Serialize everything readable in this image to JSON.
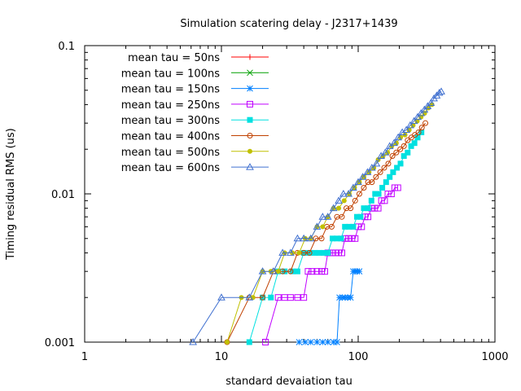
{
  "chart_data": {
    "type": "line",
    "title": "Simulation scatering delay - J2317+1439",
    "xlabel": "standard devaiation tau",
    "ylabel": "Timing residual RMS (us)",
    "xscale": "log",
    "yscale": "log",
    "xlim": [
      1,
      1000
    ],
    "ylim": [
      0.001,
      0.1
    ],
    "x_ticks": [
      1,
      10,
      100,
      1000
    ],
    "x_tick_labels": [
      "1",
      "10",
      "100",
      "1000"
    ],
    "y_ticks": [
      0.001,
      0.01,
      0.1
    ],
    "y_tick_labels": [
      "0.001",
      "0.01",
      "0.1"
    ],
    "grid": false,
    "legend_position": "top-left",
    "series": [
      {
        "name": "mean tau = 50ns",
        "color": "#ff0000",
        "marker": "plus",
        "x": [],
        "y": []
      },
      {
        "name": "mean tau = 100ns",
        "color": "#00a000",
        "marker": "cross",
        "x": [],
        "y": []
      },
      {
        "name": "mean tau = 150ns",
        "color": "#0080ff",
        "marker": "star",
        "x": [
          37,
          41,
          45,
          50,
          55,
          60,
          66,
          70,
          73,
          77,
          80,
          84,
          88,
          92,
          95,
          98,
          102
        ],
        "y": [
          0.001,
          0.001,
          0.001,
          0.001,
          0.001,
          0.001,
          0.001,
          0.001,
          0.002,
          0.002,
          0.002,
          0.002,
          0.002,
          0.003,
          0.003,
          0.003,
          0.003
        ]
      },
      {
        "name": "mean tau = 250ns",
        "color": "#c000ff",
        "marker": "square-open",
        "x": [
          21,
          26,
          29,
          32,
          36,
          40,
          43,
          46,
          50,
          54,
          57,
          60,
          64,
          68,
          72,
          76,
          80,
          85,
          90,
          95,
          100,
          106,
          112,
          118,
          125,
          132,
          140,
          148,
          156,
          165,
          175,
          185,
          195
        ],
        "y": [
          0.001,
          0.002,
          0.002,
          0.002,
          0.002,
          0.002,
          0.003,
          0.003,
          0.003,
          0.003,
          0.003,
          0.004,
          0.004,
          0.004,
          0.004,
          0.004,
          0.005,
          0.005,
          0.005,
          0.005,
          0.006,
          0.006,
          0.007,
          0.007,
          0.008,
          0.008,
          0.008,
          0.009,
          0.009,
          0.01,
          0.01,
          0.011,
          0.011
        ]
      },
      {
        "name": "mean tau = 300ns",
        "color": "#00e0e0",
        "marker": "square-filled",
        "x": [
          16,
          20,
          23,
          26,
          29,
          33,
          36,
          40,
          44,
          48,
          52,
          56,
          60,
          65,
          70,
          75,
          80,
          86,
          92,
          98,
          104,
          110,
          118,
          125,
          133,
          141,
          150,
          160,
          170,
          180,
          192,
          204,
          216,
          230,
          244,
          258,
          272,
          290
        ],
        "y": [
          0.001,
          0.002,
          0.002,
          0.003,
          0.003,
          0.003,
          0.003,
          0.004,
          0.004,
          0.004,
          0.004,
          0.004,
          0.004,
          0.005,
          0.005,
          0.005,
          0.006,
          0.006,
          0.006,
          0.007,
          0.007,
          0.008,
          0.008,
          0.009,
          0.01,
          0.01,
          0.011,
          0.012,
          0.013,
          0.014,
          0.015,
          0.016,
          0.018,
          0.019,
          0.021,
          0.022,
          0.024,
          0.026
        ]
      },
      {
        "name": "mean tau = 400ns",
        "color": "#c04000",
        "marker": "circle-open",
        "x": [
          11,
          16,
          20,
          24,
          28,
          32,
          36,
          40,
          44,
          49,
          54,
          59,
          64,
          70,
          76,
          82,
          88,
          95,
          102,
          110,
          118,
          126,
          135,
          145,
          155,
          166,
          178,
          190,
          203,
          216,
          230,
          245,
          260,
          276,
          292,
          310
        ],
        "y": [
          0.001,
          0.002,
          0.002,
          0.003,
          0.003,
          0.003,
          0.004,
          0.004,
          0.004,
          0.005,
          0.005,
          0.006,
          0.006,
          0.007,
          0.007,
          0.008,
          0.008,
          0.009,
          0.01,
          0.011,
          0.012,
          0.012,
          0.013,
          0.014,
          0.015,
          0.016,
          0.018,
          0.019,
          0.02,
          0.021,
          0.023,
          0.024,
          0.025,
          0.026,
          0.028,
          0.03
        ]
      },
      {
        "name": "mean tau = 500ns",
        "color": "#c0c000",
        "marker": "circle-filled",
        "x": [
          11,
          14,
          17,
          20,
          23,
          26,
          29,
          33,
          37,
          41,
          45,
          50,
          55,
          60,
          66,
          72,
          79,
          86,
          94,
          102,
          110,
          120,
          130,
          140,
          152,
          164,
          176,
          190,
          204,
          220,
          236,
          252,
          270,
          288,
          306,
          326,
          346
        ],
        "y": [
          0.001,
          0.002,
          0.002,
          0.003,
          0.003,
          0.003,
          0.004,
          0.004,
          0.004,
          0.005,
          0.005,
          0.006,
          0.006,
          0.007,
          0.008,
          0.008,
          0.009,
          0.01,
          0.011,
          0.012,
          0.013,
          0.014,
          0.015,
          0.017,
          0.018,
          0.019,
          0.021,
          0.022,
          0.024,
          0.025,
          0.027,
          0.029,
          0.031,
          0.033,
          0.035,
          0.038,
          0.04
        ]
      },
      {
        "name": "mean tau = 600ns",
        "color": "#4070d0",
        "marker": "triangle-open",
        "x": [
          6.2,
          10,
          16,
          20,
          24,
          28,
          32,
          36,
          40,
          45,
          50,
          55,
          60,
          66,
          72,
          78,
          85,
          92,
          100,
          108,
          117,
          126,
          136,
          147,
          158,
          170,
          183,
          196,
          210,
          225,
          240,
          256,
          272,
          288,
          305,
          322,
          340,
          358,
          375,
          392,
          405
        ],
        "y": [
          0.001,
          0.002,
          0.002,
          0.003,
          0.003,
          0.004,
          0.004,
          0.005,
          0.005,
          0.005,
          0.006,
          0.007,
          0.007,
          0.008,
          0.009,
          0.01,
          0.01,
          0.011,
          0.012,
          0.013,
          0.014,
          0.015,
          0.016,
          0.018,
          0.019,
          0.021,
          0.022,
          0.024,
          0.026,
          0.027,
          0.029,
          0.031,
          0.033,
          0.035,
          0.037,
          0.039,
          0.041,
          0.044,
          0.046,
          0.048,
          0.049
        ]
      }
    ]
  }
}
